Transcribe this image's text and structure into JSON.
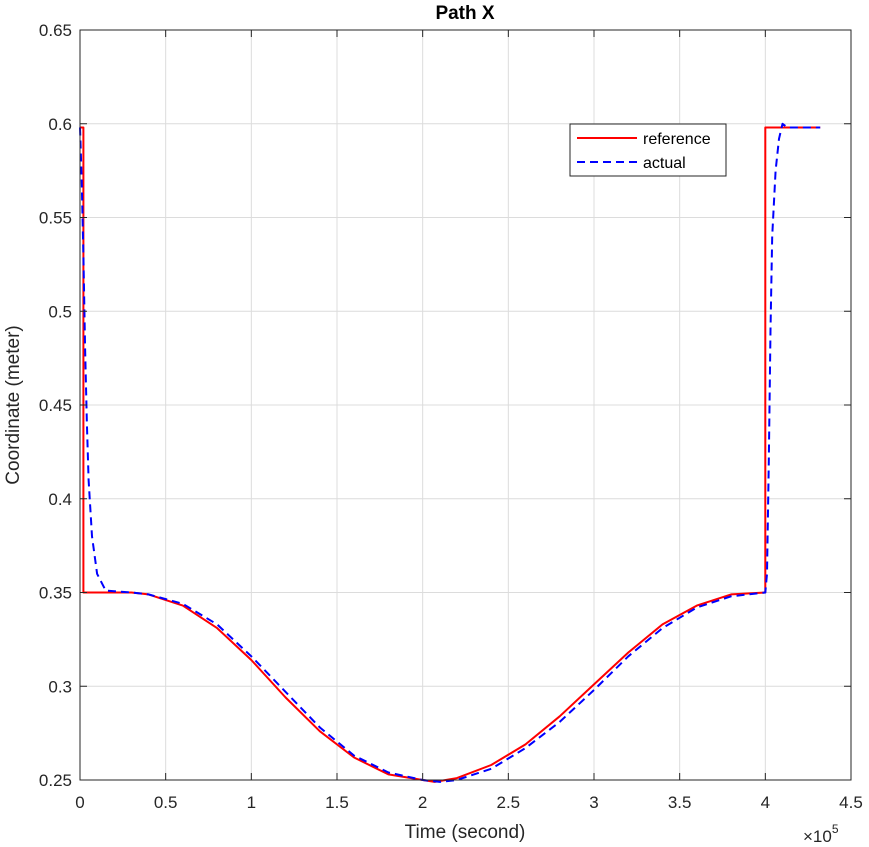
{
  "chart_data": {
    "type": "line",
    "title": "Path X",
    "xlabel": "Time (second)",
    "ylabel": "Coordinate (meter)",
    "x_multiplier_base": "×10",
    "x_multiplier_exponent": "5",
    "xlim": [
      0,
      4.5
    ],
    "ylim": [
      0.25,
      0.65
    ],
    "xticks": [
      0,
      0.5,
      1,
      1.5,
      2,
      2.5,
      3,
      3.5,
      4,
      4.5
    ],
    "xtick_labels": [
      "0",
      "0.5",
      "1",
      "1.5",
      "2",
      "2.5",
      "3",
      "3.5",
      "4",
      "4.5"
    ],
    "yticks": [
      0.25,
      0.3,
      0.35,
      0.4,
      0.45,
      0.5,
      0.55,
      0.6,
      0.65
    ],
    "ytick_labels": [
      "0.25",
      "0.3",
      "0.35",
      "0.4",
      "0.45",
      "0.5",
      "0.55",
      "0.6",
      "0.65"
    ],
    "grid": true,
    "legend_position": "top-right",
    "series": [
      {
        "name": "reference",
        "color": "#ff0000",
        "style": "solid",
        "points": [
          [
            0,
            0.598
          ],
          [
            0.02,
            0.598
          ],
          [
            0.02,
            0.35
          ],
          [
            0.3,
            0.35
          ],
          [
            0.4,
            0.349
          ],
          [
            0.6,
            0.343
          ],
          [
            0.8,
            0.331
          ],
          [
            1.0,
            0.314
          ],
          [
            1.2,
            0.294
          ],
          [
            1.4,
            0.276
          ],
          [
            1.6,
            0.262
          ],
          [
            1.8,
            0.253
          ],
          [
            2.0,
            0.25
          ],
          [
            2.07,
            0.249
          ],
          [
            2.2,
            0.251
          ],
          [
            2.4,
            0.258
          ],
          [
            2.6,
            0.269
          ],
          [
            2.8,
            0.284
          ],
          [
            3.0,
            0.301
          ],
          [
            3.2,
            0.318
          ],
          [
            3.4,
            0.333
          ],
          [
            3.6,
            0.343
          ],
          [
            3.8,
            0.349
          ],
          [
            4.0,
            0.35
          ],
          [
            4.0,
            0.598
          ],
          [
            4.32,
            0.598
          ]
        ]
      },
      {
        "name": "actual",
        "color": "#0000ff",
        "style": "dashed",
        "points": [
          [
            0,
            0.598
          ],
          [
            0.01,
            0.57
          ],
          [
            0.02,
            0.53
          ],
          [
            0.03,
            0.48
          ],
          [
            0.04,
            0.44
          ],
          [
            0.05,
            0.41
          ],
          [
            0.07,
            0.38
          ],
          [
            0.1,
            0.36
          ],
          [
            0.15,
            0.351
          ],
          [
            0.3,
            0.35
          ],
          [
            0.4,
            0.349
          ],
          [
            0.6,
            0.344
          ],
          [
            0.8,
            0.333
          ],
          [
            1.0,
            0.316
          ],
          [
            1.2,
            0.297
          ],
          [
            1.4,
            0.278
          ],
          [
            1.6,
            0.263
          ],
          [
            1.8,
            0.254
          ],
          [
            2.0,
            0.25
          ],
          [
            2.1,
            0.249
          ],
          [
            2.2,
            0.25
          ],
          [
            2.4,
            0.256
          ],
          [
            2.6,
            0.267
          ],
          [
            2.8,
            0.281
          ],
          [
            3.0,
            0.298
          ],
          [
            3.2,
            0.316
          ],
          [
            3.4,
            0.331
          ],
          [
            3.6,
            0.342
          ],
          [
            3.8,
            0.348
          ],
          [
            4.0,
            0.35
          ],
          [
            4.01,
            0.36
          ],
          [
            4.02,
            0.42
          ],
          [
            4.03,
            0.49
          ],
          [
            4.04,
            0.54
          ],
          [
            4.06,
            0.575
          ],
          [
            4.08,
            0.592
          ],
          [
            4.1,
            0.6
          ],
          [
            4.13,
            0.598
          ],
          [
            4.32,
            0.598
          ]
        ]
      }
    ]
  }
}
